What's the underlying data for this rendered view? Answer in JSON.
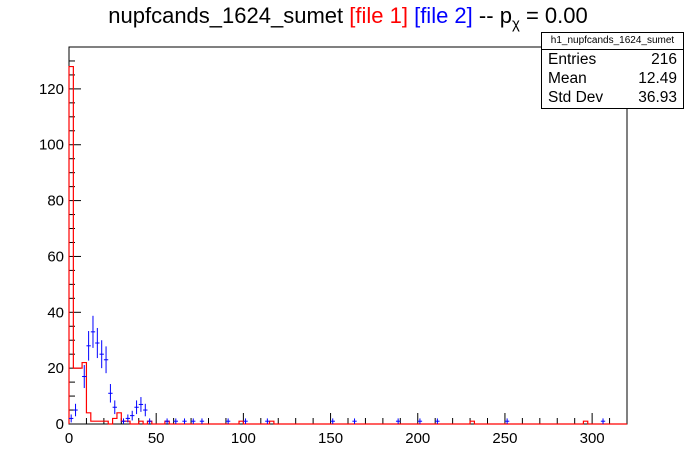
{
  "title": {
    "histname": "nupfcands_1624_sumet",
    "file1": "[file 1]",
    "file2": "[file 2]",
    "sep": "--",
    "p_symbol": "p",
    "p_sub": "χ",
    "p_value": "= 0.00"
  },
  "stats": {
    "name": "h1_nupfcands_1624_sumet",
    "rows": [
      {
        "label": "Entries",
        "value": "216"
      },
      {
        "label": "Mean",
        "value": "12.49"
      },
      {
        "label": "Std Dev",
        "value": "36.93"
      }
    ]
  },
  "colors": {
    "file1": "#ff0000",
    "file2": "#0000ff",
    "axis": "#000000"
  },
  "chart_data": {
    "type": "line",
    "title": "nupfcands_1624_sumet [file 1] [file 2] -- p_χ = 0.00",
    "xlim": [
      0,
      320
    ],
    "ylim": [
      0,
      135
    ],
    "x_ticks": [
      0,
      50,
      100,
      150,
      200,
      250,
      300
    ],
    "y_ticks": [
      0,
      20,
      40,
      60,
      80,
      100,
      120
    ],
    "bin_width": 2.5,
    "grid": false,
    "series": [
      {
        "name": "file 1",
        "style": "step",
        "color": "#ff0000",
        "bins": [
          [
            0,
            128
          ],
          [
            2.5,
            20
          ],
          [
            5,
            20
          ],
          [
            7.5,
            22
          ],
          [
            10,
            4
          ],
          [
            12.5,
            1
          ],
          [
            15,
            1
          ],
          [
            17.5,
            1
          ],
          [
            20,
            1
          ],
          [
            22.5,
            0
          ],
          [
            25,
            2
          ],
          [
            27.5,
            4
          ],
          [
            30,
            1
          ],
          [
            32.5,
            1
          ],
          [
            35,
            0
          ],
          [
            37.5,
            0
          ],
          [
            40,
            1
          ],
          [
            45,
            1
          ],
          [
            55,
            1
          ],
          [
            97.5,
            1
          ],
          [
            115,
            1
          ],
          [
            230,
            1
          ],
          [
            295,
            1
          ]
        ]
      },
      {
        "name": "file 2",
        "style": "errorbar",
        "color": "#0000ff",
        "points": [
          [
            1.25,
            2
          ],
          [
            3.75,
            5
          ],
          [
            8.75,
            17
          ],
          [
            11.25,
            28
          ],
          [
            13.75,
            33
          ],
          [
            16.25,
            29
          ],
          [
            18.75,
            25
          ],
          [
            21.25,
            23
          ],
          [
            23.75,
            11
          ],
          [
            26.25,
            6
          ],
          [
            31.25,
            1
          ],
          [
            33.75,
            2
          ],
          [
            36.25,
            3
          ],
          [
            38.75,
            6
          ],
          [
            41.25,
            7
          ],
          [
            43.75,
            5
          ],
          [
            46.25,
            1
          ],
          [
            56.25,
            1
          ],
          [
            61.25,
            1
          ],
          [
            66.25,
            1
          ],
          [
            71.25,
            1
          ],
          [
            76.25,
            1
          ],
          [
            91.25,
            1
          ],
          [
            101.25,
            1
          ],
          [
            113.75,
            1
          ],
          [
            151.25,
            1
          ],
          [
            163.75,
            1
          ],
          [
            188.75,
            1
          ],
          [
            201.25,
            1
          ],
          [
            211.25,
            1
          ],
          [
            251.25,
            1
          ],
          [
            306.25,
            1
          ]
        ]
      }
    ]
  }
}
